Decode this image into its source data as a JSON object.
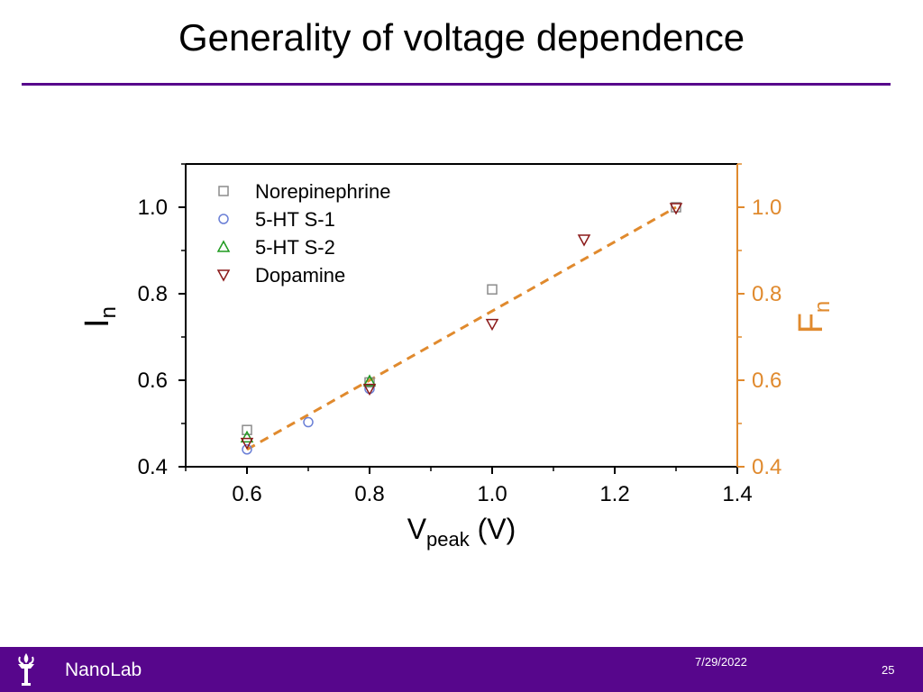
{
  "slide": {
    "title": "Generality of voltage dependence"
  },
  "footer": {
    "org": "NanoLab",
    "date": "7/29/2022",
    "page": "25"
  },
  "colors": {
    "accent": "#57068c",
    "right_axis": "#e08a2e",
    "fit_line": "#e08a2e"
  },
  "chart_data": {
    "type": "scatter",
    "xlabel_main": "V",
    "xlabel_sub": "peak",
    "xlabel_unit": "(V)",
    "ylabel_main": "I",
    "ylabel_sub": "n",
    "y2label_main": "F",
    "y2label_sub": "n",
    "xlim": [
      0.5,
      1.4
    ],
    "ylim": [
      0.4,
      1.1
    ],
    "y2lim": [
      0.4,
      1.1
    ],
    "x_ticks": [
      "0.6",
      "0.8",
      "1.0",
      "1.2",
      "1.4"
    ],
    "y_ticks": [
      "0.4",
      "0.6",
      "0.8",
      "1.0"
    ],
    "y2_ticks": [
      "0.4",
      "0.6",
      "0.8",
      "1.0"
    ],
    "grid": false,
    "legend_position": "top-left",
    "series": [
      {
        "name": "Norepinephrine",
        "marker": "square",
        "color": "#8c8c8c",
        "points": [
          [
            0.6,
            0.485
          ],
          [
            0.8,
            0.595
          ],
          [
            1.0,
            0.81
          ],
          [
            1.3,
            1.0
          ]
        ]
      },
      {
        "name": "5-HT S-1",
        "marker": "circle",
        "color": "#6a7fd6",
        "points": [
          [
            0.6,
            0.44
          ],
          [
            0.7,
            0.503
          ],
          [
            0.8,
            0.58
          ]
        ]
      },
      {
        "name": "5-HT S-2",
        "marker": "triangle-up",
        "color": "#1f9a1f",
        "points": [
          [
            0.6,
            0.468
          ],
          [
            0.8,
            0.598
          ]
        ]
      },
      {
        "name": "Dopamine",
        "marker": "triangle-down",
        "color": "#8b1a1a",
        "points": [
          [
            0.6,
            0.455
          ],
          [
            0.8,
            0.58
          ],
          [
            1.0,
            0.73
          ],
          [
            1.15,
            0.925
          ],
          [
            1.3,
            0.998
          ]
        ]
      }
    ],
    "fit_line": {
      "style": "dashed",
      "points": [
        [
          0.6,
          0.44
        ],
        [
          1.3,
          1.0
        ]
      ]
    }
  }
}
